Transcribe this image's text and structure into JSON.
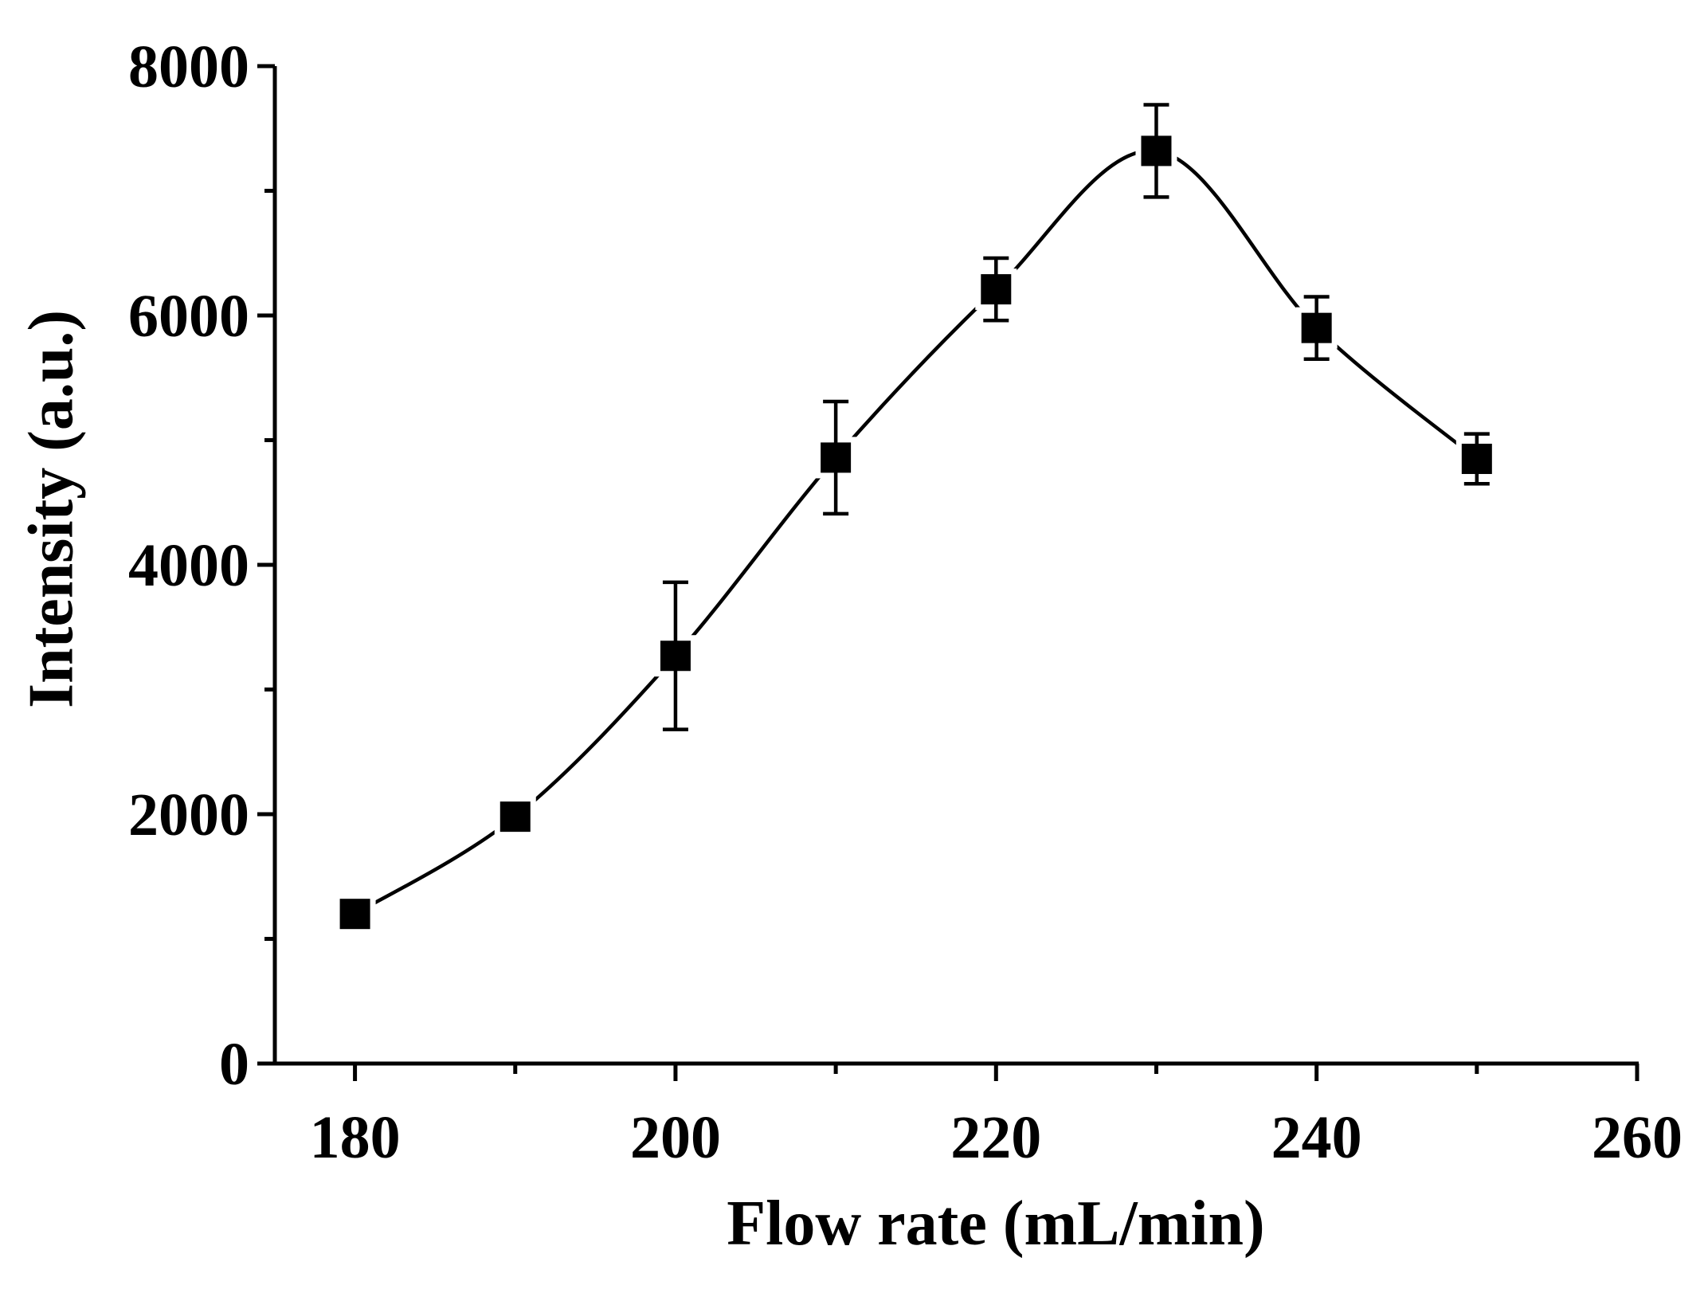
{
  "chart_data": {
    "type": "line",
    "title": "",
    "xlabel": "Flow rate (mL/min)",
    "ylabel": "Intensity (a.u.)",
    "xlim": [
      175,
      260
    ],
    "ylim": [
      0,
      8000
    ],
    "x_ticks": [
      180,
      200,
      220,
      240,
      260
    ],
    "x_tick_labels": [
      "180",
      "200",
      "220",
      "240",
      "260"
    ],
    "x_minor_ticks": [
      190,
      210,
      230,
      250
    ],
    "y_ticks": [
      0,
      2000,
      4000,
      6000,
      8000
    ],
    "y_tick_labels": [
      "0",
      "2000",
      "4000",
      "6000",
      "8000"
    ],
    "y_minor_ticks": [
      1000,
      3000,
      5000,
      7000
    ],
    "grid": false,
    "marker": "square",
    "colors": {
      "line": "#000000",
      "marker": "#000000",
      "axis": "#000000"
    },
    "series": [
      {
        "name": "Intensity",
        "x": [
          180,
          190,
          200,
          210,
          220,
          230,
          240,
          250
        ],
        "y": [
          1200,
          1980,
          3270,
          4860,
          6210,
          7320,
          5900,
          4850
        ],
        "error": [
          70,
          80,
          590,
          450,
          250,
          370,
          250,
          200
        ]
      }
    ]
  }
}
